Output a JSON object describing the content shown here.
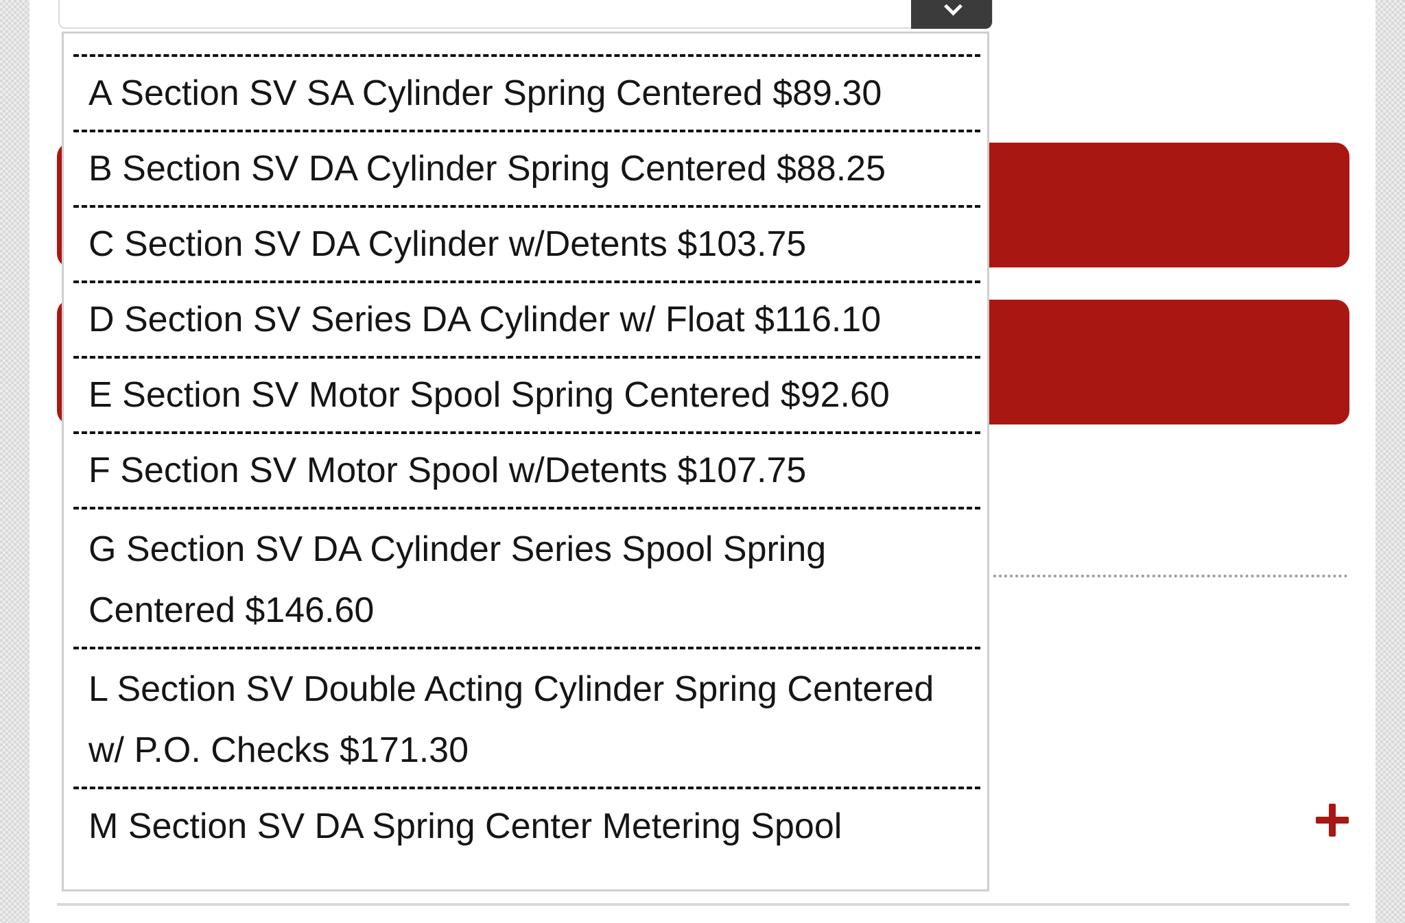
{
  "dropdown": {
    "options": [
      {
        "label": "A Section SV SA Cylinder Spring Centered $89.30"
      },
      {
        "label": "B Section SV DA Cylinder Spring Centered $88.25"
      },
      {
        "label": "C Section SV DA Cylinder w/Detents $103.75"
      },
      {
        "label": "D Section SV Series DA Cylinder w/ Float $116.10"
      },
      {
        "label": "E Section SV Motor Spool Spring Centered $92.60"
      },
      {
        "label": "F Section SV Motor Spool w/Detents $107.75"
      },
      {
        "label": "G Section SV DA Cylinder Series Spool Spring Centered $146.60"
      },
      {
        "label": "L Section SV Double Acting Cylinder Spring Centered w/ P.O. Checks $171.30"
      },
      {
        "label": "M Section SV DA Spring Center Metering Spool"
      }
    ]
  },
  "colors": {
    "accent_red": "#a91713",
    "select_arrow_bg": "#3b3b3b"
  },
  "icons": {
    "select_arrow": "chevron-down-icon",
    "add": "plus-icon"
  }
}
